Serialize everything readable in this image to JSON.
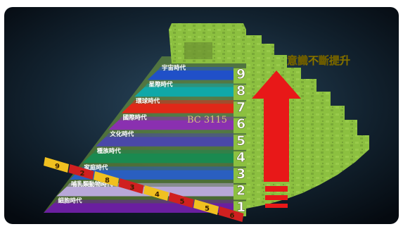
{
  "heading": "意識不斷提升",
  "date_mark": "BC 3115",
  "levels": [
    {
      "num": "1",
      "label": "細胞時代",
      "color": "#6a1fa0"
    },
    {
      "num": "2",
      "label": "哺乳類動物時代",
      "color": "#b8a8d8"
    },
    {
      "num": "3",
      "label": "家庭時代",
      "color": "#2a5fc0"
    },
    {
      "num": "4",
      "label": "種族時代",
      "color": "#1a8a50"
    },
    {
      "num": "5",
      "label": "文化時代",
      "color": "#4a48a8"
    },
    {
      "num": "6",
      "label": "國際時代",
      "color": "#8a30b0"
    },
    {
      "num": "7",
      "label": "環球時代",
      "color": "#e02818"
    },
    {
      "num": "8",
      "label": "星際時代",
      "color": "#10a8a8"
    },
    {
      "num": "9",
      "label": "宇宙時代",
      "color": "#2050c8"
    }
  ],
  "strip_numbers": [
    "9",
    "2",
    "8",
    "3",
    "4",
    "5",
    "5",
    "6"
  ],
  "colors": {
    "arrow": "#e81818",
    "pyramid": "#8cc040",
    "heading": "#f4e000",
    "background": "#0e1a26"
  }
}
